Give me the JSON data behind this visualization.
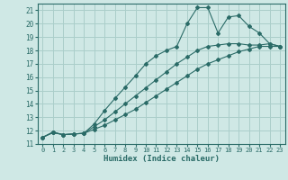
{
  "xlabel": "Humidex (Indice chaleur)",
  "bg_color": "#cfe8e5",
  "grid_color": "#aaceca",
  "line_color": "#2a6b67",
  "xlim": [
    -0.5,
    23.5
  ],
  "ylim": [
    11,
    21.5
  ],
  "xticks": [
    0,
    1,
    2,
    3,
    4,
    5,
    6,
    7,
    8,
    9,
    10,
    11,
    12,
    13,
    14,
    15,
    16,
    17,
    18,
    19,
    20,
    21,
    22,
    23
  ],
  "yticks": [
    11,
    12,
    13,
    14,
    15,
    16,
    17,
    18,
    19,
    20,
    21
  ],
  "lines": [
    {
      "x": [
        0,
        1,
        2,
        3,
        4,
        5,
        6,
        7,
        8,
        9,
        10,
        11,
        12,
        13,
        14,
        15,
        16,
        17,
        18,
        19,
        20,
        21,
        22,
        23
      ],
      "y": [
        11.5,
        11.9,
        11.7,
        11.75,
        11.8,
        12.5,
        13.5,
        14.4,
        15.25,
        16.1,
        17.0,
        17.6,
        18.0,
        18.3,
        20.0,
        21.2,
        21.2,
        19.3,
        20.5,
        20.6,
        19.8,
        19.3,
        18.5,
        18.3
      ]
    },
    {
      "x": [
        0,
        1,
        2,
        3,
        4,
        5,
        6,
        7,
        8,
        9,
        10,
        11,
        12,
        13,
        14,
        15,
        16,
        17,
        18,
        19,
        20,
        21,
        22,
        23
      ],
      "y": [
        11.5,
        11.85,
        11.7,
        11.75,
        11.8,
        12.3,
        12.8,
        13.4,
        14.0,
        14.6,
        15.2,
        15.8,
        16.4,
        17.0,
        17.5,
        18.0,
        18.3,
        18.4,
        18.5,
        18.5,
        18.4,
        18.4,
        18.5,
        18.3
      ]
    },
    {
      "x": [
        0,
        1,
        2,
        3,
        4,
        5,
        6,
        7,
        8,
        9,
        10,
        11,
        12,
        13,
        14,
        15,
        16,
        17,
        18,
        19,
        20,
        21,
        22,
        23
      ],
      "y": [
        11.5,
        11.85,
        11.7,
        11.75,
        11.8,
        12.1,
        12.4,
        12.8,
        13.2,
        13.6,
        14.1,
        14.6,
        15.1,
        15.6,
        16.1,
        16.6,
        17.0,
        17.3,
        17.6,
        17.9,
        18.1,
        18.3,
        18.3,
        18.3
      ]
    }
  ]
}
